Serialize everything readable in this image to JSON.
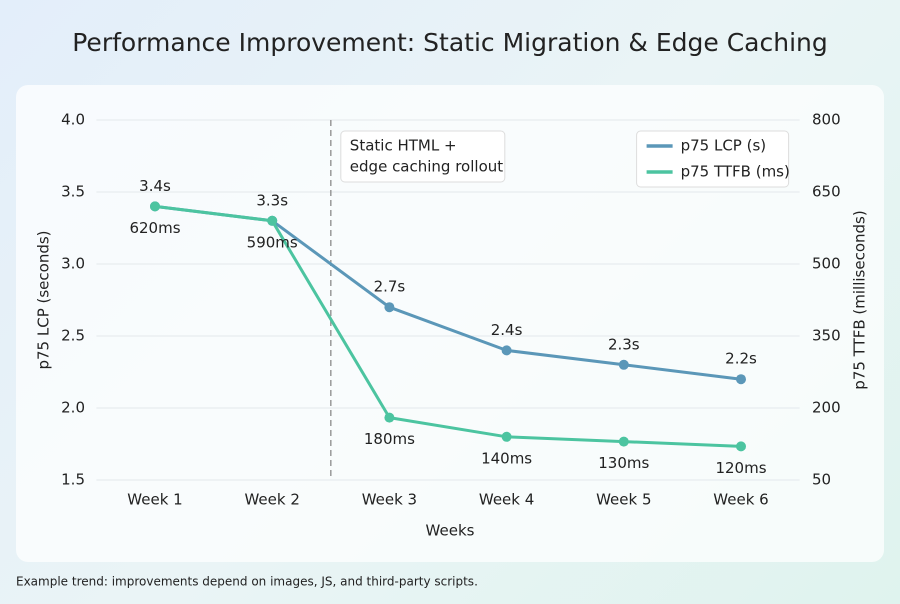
{
  "chart_data": {
    "type": "line",
    "title": "Performance Improvement: Static Migration & Edge Caching",
    "x_label": "Weeks",
    "y_label": "p75 LCP (seconds)",
    "y2_label": "p75 TTFB (milliseconds)",
    "categories": [
      "Week 1",
      "Week 2",
      "Week 3",
      "Week 4",
      "Week 5",
      "Week 6"
    ],
    "series": [
      {
        "name": "p75 LCP (s)",
        "color": "#5b97b8",
        "values": [
          3.4,
          3.3,
          2.7,
          2.4,
          2.3,
          2.2
        ],
        "value_labels": [
          "3.4s",
          "3.3s",
          "2.7s",
          "2.4s",
          "2.3s",
          "2.2s"
        ]
      },
      {
        "name": "p75 TTFB (ms)",
        "color": "#4cc4a0",
        "axis": "y2",
        "values": [
          620,
          590,
          180,
          140,
          130,
          120
        ],
        "value_labels": [
          "620ms",
          "590ms",
          "180ms",
          "140ms",
          "130ms",
          "120ms"
        ]
      }
    ],
    "ylim": [
      1.5,
      4.0
    ],
    "yticks": [
      1.5,
      {
        "value": 2,
        "label": "2.0"
      },
      2.5,
      {
        "value": 3,
        "label": "3.0"
      },
      3.5,
      {
        "value": 4,
        "label": "4.0"
      }
    ],
    "y2lim": [
      50,
      800
    ],
    "y2ticks": [
      50,
      200,
      350,
      500,
      650,
      800
    ],
    "grid": true,
    "legend": "upper right",
    "annotation": {
      "lines": [
        "Static HTML +",
        "edge caching rollout"
      ]
    },
    "footnote": "Example trend: improvements depend on images, JS, and third-party scripts."
  }
}
